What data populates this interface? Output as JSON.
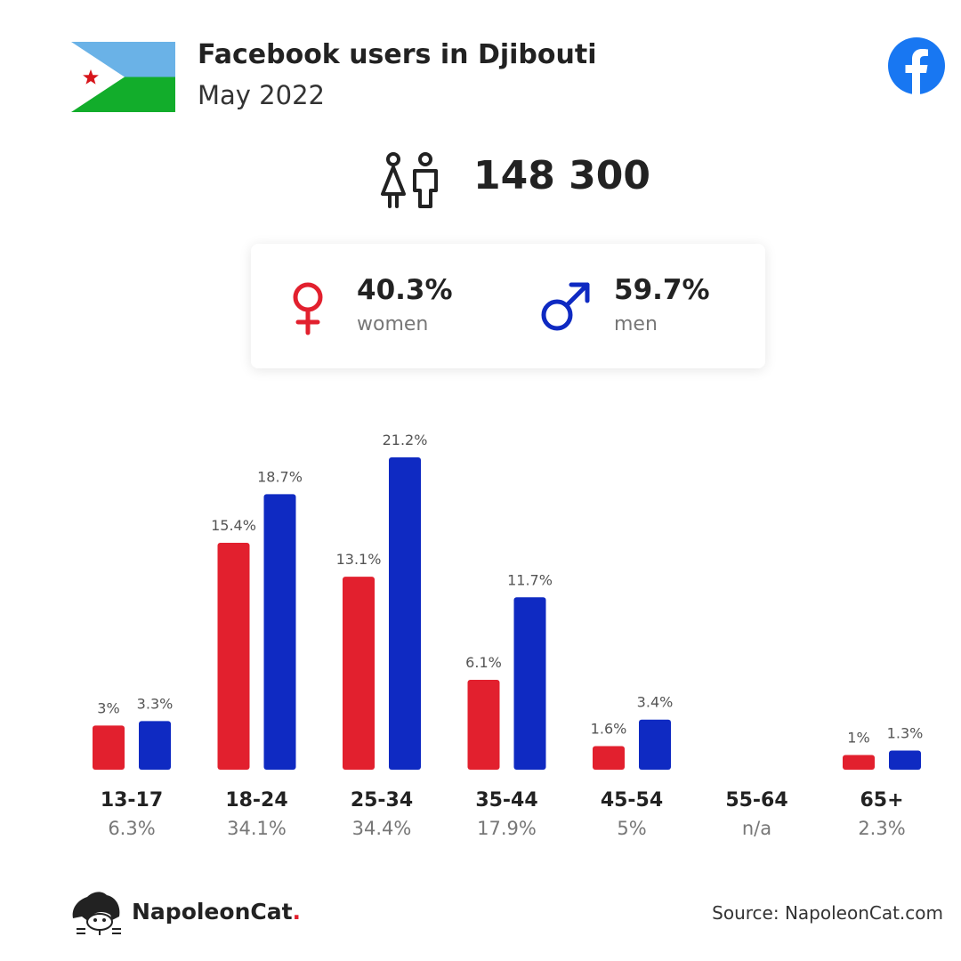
{
  "header": {
    "title": "Facebook users in Djibouti",
    "subtitle": "May 2022"
  },
  "flag": {
    "country": "Djibouti",
    "colors": [
      "#6ab2e7",
      "#12ad2b",
      "#ffffff",
      "#d7141a"
    ]
  },
  "total": {
    "value": "148 300",
    "icon": "people-icon"
  },
  "gender": {
    "women": {
      "pct": "40.3%",
      "label": "women",
      "icon": "female-icon",
      "color": "#e2202e"
    },
    "men": {
      "pct": "59.7%",
      "label": "men",
      "icon": "male-icon",
      "color": "#0f2ac2"
    }
  },
  "colors": {
    "women": "#e2202e",
    "men": "#0f2ac2",
    "facebook": "#1877f2"
  },
  "chart_data": {
    "type": "bar",
    "categories": [
      "13-17",
      "18-24",
      "25-34",
      "35-44",
      "45-54",
      "55-64",
      "65+"
    ],
    "category_totals": [
      "6.3%",
      "34.1%",
      "34.4%",
      "17.9%",
      "5%",
      "n/a",
      "2.3%"
    ],
    "series": [
      {
        "values": [
          3,
          15.4,
          13.1,
          6.1,
          1.6,
          null,
          1
        ],
        "labels": [
          "3%",
          "15.4%",
          "13.1%",
          "6.1%",
          "1.6%",
          "",
          "1%"
        ],
        "color": "#e2202e"
      },
      {
        "values": [
          3.3,
          18.7,
          21.2,
          11.7,
          3.4,
          null,
          1.3
        ],
        "labels": [
          "3.3%",
          "18.7%",
          "21.2%",
          "11.7%",
          "3.4%",
          "",
          "1.3%"
        ],
        "color": "#0f2ac2"
      }
    ],
    "ylim": [
      0,
      21.2
    ],
    "grid": false,
    "legend": "none"
  },
  "footer": {
    "brand": "NapoleonCat",
    "brand_dot": ".",
    "source": "Source: NapoleonCat.com"
  }
}
